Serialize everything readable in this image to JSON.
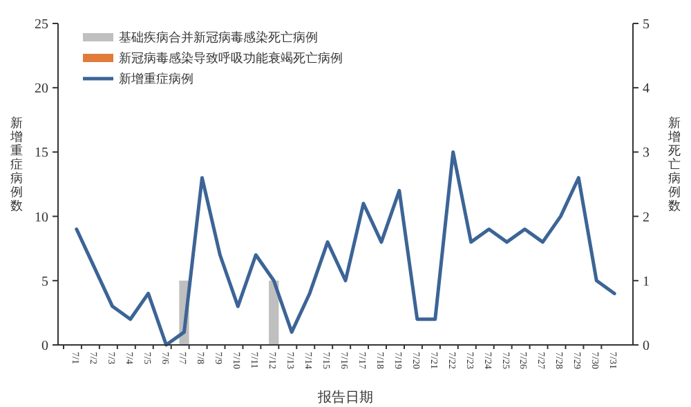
{
  "chart_data": {
    "type": "bar",
    "xlabel": "报告日期",
    "ylabel": "新增重症病例数",
    "y2label": "新增死亡病例数",
    "categories": [
      "7/1",
      "7/2",
      "7/3",
      "7/4",
      "7/5",
      "7/6",
      "7/7",
      "7/8",
      "7/9",
      "7/10",
      "7/11",
      "7/12",
      "7/13",
      "7/14",
      "7/15",
      "7/16",
      "7/17",
      "7/18",
      "7/19",
      "7/20",
      "7/21",
      "7/22",
      "7/23",
      "7/24",
      "7/25",
      "7/26",
      "7/27",
      "7/28",
      "7/29",
      "7/30",
      "7/31"
    ],
    "stacked": true,
    "series": [
      {
        "name": "基础疾病合并新冠病毒感染死亡病例",
        "color": "#bfbfbf",
        "axis": "y2",
        "values": [
          0,
          0,
          0,
          0,
          0,
          0,
          1,
          0,
          0,
          0,
          0,
          1,
          0,
          0,
          0,
          0,
          0,
          0,
          0,
          0,
          0,
          0,
          0,
          0,
          0,
          0,
          0,
          0,
          0,
          0,
          0
        ]
      },
      {
        "name": "新冠病毒感染导致呼吸功能衰竭死亡病例",
        "color": "#e07b39",
        "axis": "y2",
        "values": [
          0,
          0,
          0,
          0,
          0,
          0,
          0,
          0,
          0,
          0,
          0,
          0,
          0,
          0,
          0,
          0,
          0,
          0,
          0,
          0,
          0,
          0,
          0,
          0,
          0,
          0,
          0,
          0,
          0,
          0,
          0
        ]
      },
      {
        "name": "新增重症病例",
        "color": "#3c6496",
        "type": "line",
        "values": [
          9,
          6,
          3,
          2,
          4,
          0,
          1,
          13,
          7,
          3,
          7,
          5,
          1,
          4,
          8,
          5,
          11,
          8,
          12,
          2,
          2,
          15,
          8,
          9,
          8,
          9,
          8,
          10,
          13,
          5,
          4
        ]
      }
    ],
    "ylim": [
      0,
      25
    ],
    "yticks": [
      0,
      5,
      10,
      15,
      20,
      25
    ],
    "y2lim": [
      0,
      5
    ],
    "y2ticks": [
      0,
      1,
      2,
      3,
      4,
      5
    ],
    "legend": "top left",
    "line_style": "solid",
    "marker": "none"
  }
}
